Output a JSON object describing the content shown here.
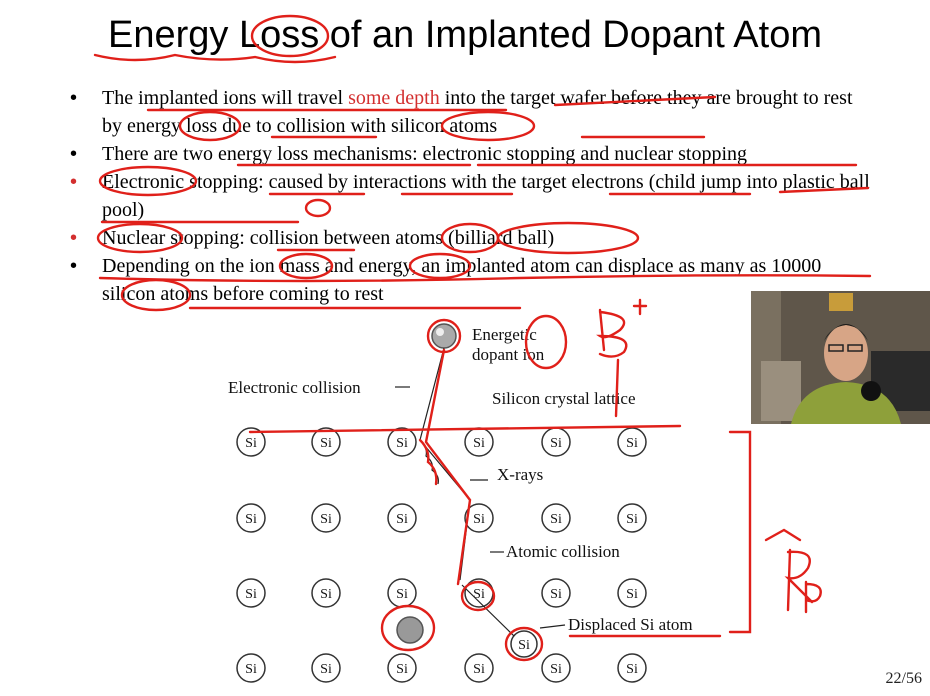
{
  "slide": {
    "title": "Energy Loss of an Implanted Dopant Atom",
    "bullets": [
      {
        "parts": [
          "The implanted ions will travel ",
          "some depth",
          " into the target wafer before they are brought to rest by energy loss due to collision with silicon atoms"
        ]
      },
      {
        "text": "There are two energy loss mechanisms: electronic stopping and nuclear stopping"
      },
      {
        "text": "Electronic stopping: caused by interactions with the target electrons (child jump into plastic ball pool)"
      },
      {
        "text": "Nuclear stopping: collision between atoms (billiard ball)"
      },
      {
        "text": "Depending on the ion mass and energy, an implanted atom can displace as many as 10000 silicon atoms before coming to rest"
      }
    ],
    "page_number": "22/56"
  },
  "figure": {
    "atom_label": "Si",
    "labels": {
      "energetic_1": "Energetic",
      "energetic_2": "dopant ion",
      "electronic_collision": "Electronic collision",
      "silicon_lattice": "Silicon crystal lattice",
      "xrays": "X-rays",
      "atomic_collision": "Atomic collision",
      "displaced": "Displaced Si atom"
    }
  },
  "annotations": {
    "handwriting_1": "B",
    "handwriting_2": "+",
    "handwriting_3": "R",
    "handwriting_4": "p",
    "ink_color": "#e0201a"
  }
}
